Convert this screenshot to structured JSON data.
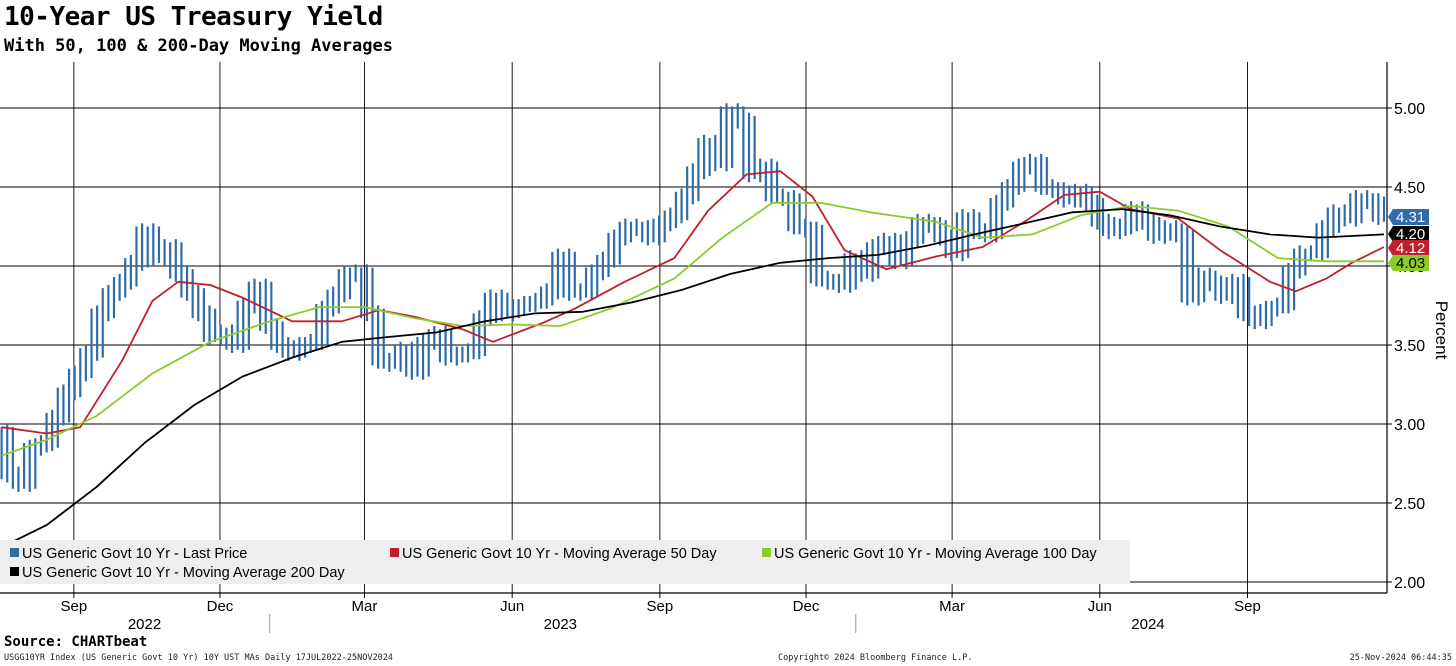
{
  "title": "10-Year US Treasury Yield",
  "subtitle": "With 50, 100 & 200-Day Moving Averages",
  "source": "Source: CHARTbeat",
  "footer": {
    "left": "USGG10YR Index (US Generic Govt 10 Yr) 10Y UST MAs  Daily 17JUL2022-25NOV2024",
    "middle": "Copyright© 2024 Bloomberg Finance L.P.",
    "right": "25-Nov-2024 06:44:35"
  },
  "colors": {
    "price": "#2f6ca7",
    "ma50": "#c0202e",
    "ma100": "#8ccc2a",
    "ma200": "#000000",
    "grid": "#000000"
  },
  "chart_data": {
    "type": "line",
    "ylabel": "Percent",
    "ylim": [
      2.0,
      5.25
    ],
    "yticks": [
      "2.00",
      "2.50",
      "3.00",
      "3.50",
      "4.00",
      "4.50",
      "5.00"
    ],
    "x_range": [
      "2022-07-17",
      "2024-11-25"
    ],
    "month_ticks": [
      {
        "label": "Sep",
        "date": "2022-09-01"
      },
      {
        "label": "Dec",
        "date": "2022-12-01"
      },
      {
        "label": "Mar",
        "date": "2023-03-01"
      },
      {
        "label": "Jun",
        "date": "2023-06-01"
      },
      {
        "label": "Sep",
        "date": "2023-09-01"
      },
      {
        "label": "Dec",
        "date": "2023-12-01"
      },
      {
        "label": "Mar",
        "date": "2024-03-01"
      },
      {
        "label": "Jun",
        "date": "2024-06-01"
      },
      {
        "label": "Sep",
        "date": "2024-09-01"
      }
    ],
    "year_ticks": [
      {
        "label": "2022",
        "date": "2022-10-15"
      },
      {
        "label": "2023",
        "date": "2023-07-01"
      },
      {
        "label": "2024",
        "date": "2024-07-01"
      }
    ],
    "year_dividers": [
      "2023-01-01",
      "2024-01-01"
    ],
    "legend_position": "bottom-left",
    "legend": [
      {
        "key": "price",
        "label": "US Generic Govt 10 Yr - Last Price"
      },
      {
        "key": "ma50",
        "label": "US Generic Govt 10 Yr - Moving Average 50 Day"
      },
      {
        "key": "ma100",
        "label": "US Generic Govt 10 Yr - Moving Average 100 Day"
      },
      {
        "key": "ma200",
        "label": "US Generic Govt 10 Yr - Moving Average 200 Day"
      }
    ],
    "last_value_labels": [
      {
        "key": "price",
        "text": "4.31",
        "value": 4.31
      },
      {
        "key": "ma200",
        "text": "4.20",
        "value": 4.2
      },
      {
        "key": "ma50",
        "text": "4.12",
        "value": 4.12
      },
      {
        "key": "ma100",
        "text": "4.03",
        "value": 4.03
      }
    ],
    "series": [
      {
        "key": "price",
        "name": "US Generic Govt 10 Yr - Last Price",
        "style": "bars",
        "x": [
          "2022-07-18",
          "2022-07-25",
          "2022-08-01",
          "2022-08-08",
          "2022-08-15",
          "2022-08-22",
          "2022-08-29",
          "2022-09-05",
          "2022-09-12",
          "2022-09-19",
          "2022-09-26",
          "2022-10-03",
          "2022-10-10",
          "2022-10-17",
          "2022-10-24",
          "2022-10-31",
          "2022-11-07",
          "2022-11-14",
          "2022-11-21",
          "2022-11-28",
          "2022-12-05",
          "2022-12-12",
          "2022-12-19",
          "2022-12-26",
          "2023-01-02",
          "2023-01-09",
          "2023-01-16",
          "2023-01-23",
          "2023-01-30",
          "2023-02-06",
          "2023-02-13",
          "2023-02-20",
          "2023-02-27",
          "2023-03-06",
          "2023-03-13",
          "2023-03-20",
          "2023-03-27",
          "2023-04-03",
          "2023-04-10",
          "2023-04-17",
          "2023-04-24",
          "2023-05-01",
          "2023-05-08",
          "2023-05-15",
          "2023-05-22",
          "2023-05-29",
          "2023-06-05",
          "2023-06-12",
          "2023-06-19",
          "2023-06-26",
          "2023-07-03",
          "2023-07-10",
          "2023-07-17",
          "2023-07-24",
          "2023-07-31",
          "2023-08-07",
          "2023-08-14",
          "2023-08-21",
          "2023-08-28",
          "2023-09-04",
          "2023-09-11",
          "2023-09-18",
          "2023-09-25",
          "2023-10-02",
          "2023-10-09",
          "2023-10-16",
          "2023-10-23",
          "2023-10-30",
          "2023-11-06",
          "2023-11-13",
          "2023-11-20",
          "2023-11-27",
          "2023-12-04",
          "2023-12-11",
          "2023-12-18",
          "2023-12-25",
          "2024-01-01",
          "2024-01-08",
          "2024-01-15",
          "2024-01-22",
          "2024-01-29",
          "2024-02-05",
          "2024-02-12",
          "2024-02-19",
          "2024-02-26",
          "2024-03-04",
          "2024-03-11",
          "2024-03-18",
          "2024-03-25",
          "2024-04-01",
          "2024-04-08",
          "2024-04-15",
          "2024-04-22",
          "2024-04-29",
          "2024-05-06",
          "2024-05-13",
          "2024-05-20",
          "2024-05-27",
          "2024-06-03",
          "2024-06-10",
          "2024-06-17",
          "2024-06-24",
          "2024-07-01",
          "2024-07-08",
          "2024-07-15",
          "2024-07-22",
          "2024-07-29",
          "2024-08-05",
          "2024-08-12",
          "2024-08-19",
          "2024-08-26",
          "2024-09-02",
          "2024-09-09",
          "2024-09-16",
          "2024-09-23",
          "2024-09-30",
          "2024-10-07",
          "2024-10-14",
          "2024-10-21",
          "2024-10-28",
          "2024-11-04",
          "2024-11-11",
          "2024-11-18",
          "2024-11-25"
        ],
        "y": [
          2.95,
          2.68,
          2.62,
          2.85,
          2.88,
          3.04,
          3.2,
          3.32,
          3.45,
          3.7,
          3.83,
          3.9,
          4.02,
          4.22,
          4.05,
          4.12,
          3.95,
          3.83,
          3.7,
          3.55,
          3.58,
          3.5,
          3.75,
          3.87,
          3.62,
          3.5,
          3.45,
          3.5,
          3.52,
          3.73,
          3.82,
          3.95,
          3.96,
          3.7,
          3.4,
          3.38,
          3.47,
          3.33,
          3.52,
          3.57,
          3.42,
          3.44,
          3.46,
          3.67,
          3.8,
          3.7,
          3.74,
          3.76,
          3.78,
          3.84,
          4.06,
          3.83,
          3.84,
          3.96,
          4.04,
          4.18,
          4.25,
          4.24,
          4.18,
          4.27,
          4.32,
          4.44,
          4.6,
          4.78,
          4.65,
          4.98,
          4.92,
          4.58,
          4.63,
          4.44,
          4.43,
          4.25,
          4.23,
          3.92,
          3.9,
          3.88,
          4.05,
          3.95,
          4.12,
          4.16,
          4.03,
          4.17,
          4.28,
          4.26,
          4.18,
          4.08,
          4.31,
          4.22,
          4.2,
          4.4,
          4.5,
          4.63,
          4.66,
          4.5,
          4.48,
          4.42,
          4.47,
          4.4,
          4.28,
          4.22,
          4.25,
          4.36,
          4.28,
          4.19,
          4.24,
          4.2,
          3.8,
          3.94,
          3.89,
          3.81,
          3.9,
          3.7,
          3.65,
          3.73,
          3.75,
          3.97,
          4.08,
          4.08,
          4.24,
          4.34,
          4.3,
          4.43,
          4.41,
          4.31
        ]
      },
      {
        "key": "ma50",
        "name": "US Generic Govt 10 Yr - Moving Average 50 Day",
        "style": "line",
        "x": [
          "2022-07-18",
          "2022-08-15",
          "2022-09-05",
          "2022-10-01",
          "2022-10-20",
          "2022-11-05",
          "2022-11-25",
          "2022-12-15",
          "2023-01-15",
          "2023-02-15",
          "2023-03-10",
          "2023-04-01",
          "2023-05-01",
          "2023-05-20",
          "2023-06-20",
          "2023-07-10",
          "2023-08-10",
          "2023-09-10",
          "2023-10-01",
          "2023-10-25",
          "2023-11-15",
          "2023-12-05",
          "2023-12-25",
          "2024-01-20",
          "2024-02-20",
          "2024-03-20",
          "2024-04-15",
          "2024-05-10",
          "2024-06-01",
          "2024-06-20",
          "2024-07-20",
          "2024-08-15",
          "2024-09-15",
          "2024-10-01",
          "2024-10-20",
          "2024-11-05",
          "2024-11-25"
        ],
        "y": [
          2.98,
          2.94,
          2.98,
          3.4,
          3.78,
          3.9,
          3.88,
          3.8,
          3.65,
          3.65,
          3.72,
          3.68,
          3.6,
          3.52,
          3.64,
          3.73,
          3.9,
          4.05,
          4.35,
          4.58,
          4.6,
          4.44,
          4.1,
          3.98,
          4.06,
          4.12,
          4.28,
          4.45,
          4.47,
          4.36,
          4.3,
          4.1,
          3.9,
          3.84,
          3.92,
          4.02,
          4.12
        ]
      },
      {
        "key": "ma100",
        "name": "US Generic Govt 10 Yr - Moving Average 100 Day",
        "style": "line",
        "x": [
          "2022-07-18",
          "2022-08-15",
          "2022-09-15",
          "2022-10-20",
          "2022-11-25",
          "2023-01-01",
          "2023-02-01",
          "2023-03-01",
          "2023-04-01",
          "2023-05-01",
          "2023-06-01",
          "2023-07-01",
          "2023-08-01",
          "2023-09-10",
          "2023-10-10",
          "2023-11-10",
          "2023-12-10",
          "2024-01-10",
          "2024-02-20",
          "2024-03-20",
          "2024-04-20",
          "2024-05-20",
          "2024-06-20",
          "2024-07-20",
          "2024-08-20",
          "2024-09-20",
          "2024-10-20",
          "2024-11-25"
        ],
        "y": [
          2.8,
          2.9,
          3.05,
          3.32,
          3.52,
          3.65,
          3.74,
          3.74,
          3.67,
          3.62,
          3.63,
          3.62,
          3.73,
          3.92,
          4.18,
          4.4,
          4.4,
          4.34,
          4.28,
          4.18,
          4.2,
          4.32,
          4.38,
          4.35,
          4.25,
          4.05,
          4.03,
          4.03
        ]
      },
      {
        "key": "ma200",
        "name": "US Generic Govt 10 Yr - Moving Average 200 Day",
        "style": "line",
        "x": [
          "2022-07-18",
          "2022-08-15",
          "2022-09-15",
          "2022-10-15",
          "2022-11-15",
          "2022-12-15",
          "2023-01-15",
          "2023-02-15",
          "2023-03-15",
          "2023-04-15",
          "2023-05-15",
          "2023-06-15",
          "2023-07-15",
          "2023-08-15",
          "2023-09-15",
          "2023-10-15",
          "2023-11-15",
          "2023-12-15",
          "2024-01-15",
          "2024-02-15",
          "2024-03-15",
          "2024-04-15",
          "2024-05-15",
          "2024-06-15",
          "2024-07-15",
          "2024-08-15",
          "2024-09-15",
          "2024-10-15",
          "2024-11-25"
        ],
        "y": [
          2.22,
          2.36,
          2.6,
          2.88,
          3.12,
          3.3,
          3.42,
          3.52,
          3.55,
          3.58,
          3.65,
          3.7,
          3.71,
          3.77,
          3.85,
          3.95,
          4.02,
          4.05,
          4.07,
          4.13,
          4.2,
          4.27,
          4.34,
          4.36,
          4.32,
          4.25,
          4.2,
          4.18,
          4.2
        ]
      }
    ]
  }
}
